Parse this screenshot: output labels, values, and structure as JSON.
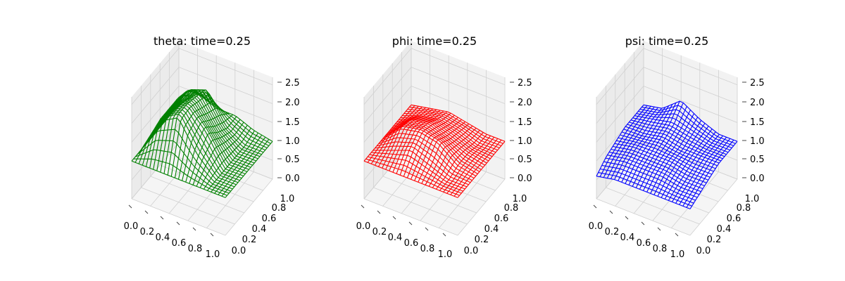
{
  "chart_data": [
    {
      "type": "surface",
      "title": "theta: time=0.25",
      "color": "#008000",
      "x_ticks": [
        "0.0",
        "0.2",
        "0.4",
        "0.6",
        "0.8",
        "1.0"
      ],
      "y_ticks": [
        "0.0",
        "0.2",
        "0.4",
        "0.6",
        "0.8",
        "1.0"
      ],
      "z_ticks": [
        "0.0",
        "0.5",
        "1.0",
        "1.5",
        "2.0",
        "2.5"
      ],
      "xlim": [
        0,
        1
      ],
      "ylim": [
        0,
        1
      ],
      "zlim": [
        0,
        2.7
      ],
      "x": [
        0.0,
        0.2,
        0.4,
        0.6,
        0.8,
        1.0
      ],
      "y": [
        0.0,
        0.2,
        0.4,
        0.6,
        0.8,
        1.0
      ],
      "z": [
        [
          1.0,
          1.0,
          1.0,
          1.0,
          1.0,
          1.0
        ],
        [
          1.0,
          2.0,
          2.3,
          1.5,
          1.0,
          1.0
        ],
        [
          1.0,
          2.0,
          2.3,
          1.8,
          1.0,
          1.0
        ],
        [
          1.0,
          2.0,
          2.2,
          1.5,
          1.0,
          1.0
        ],
        [
          1.0,
          1.9,
          2.1,
          1.3,
          1.0,
          1.0
        ],
        [
          1.0,
          1.5,
          1.3,
          1.3,
          1.1,
          1.0
        ]
      ]
    },
    {
      "type": "surface",
      "title": "phi: time=0.25",
      "color": "#ff0000",
      "x_ticks": [
        "0.0",
        "0.2",
        "0.4",
        "0.6",
        "0.8",
        "1.0"
      ],
      "y_ticks": [
        "0.0",
        "0.2",
        "0.4",
        "0.6",
        "0.8",
        "1.0"
      ],
      "z_ticks": [
        "0.0",
        "0.5",
        "1.0",
        "1.5",
        "2.0",
        "2.5"
      ],
      "xlim": [
        0,
        1
      ],
      "ylim": [
        0,
        1
      ],
      "zlim": [
        0,
        2.7
      ],
      "x": [
        0.0,
        0.2,
        0.4,
        0.6,
        0.8,
        1.0
      ],
      "y": [
        0.0,
        0.2,
        0.4,
        0.6,
        0.8,
        1.0
      ],
      "z": [
        [
          1.0,
          1.0,
          1.0,
          1.0,
          1.0,
          1.0
        ],
        [
          1.0,
          1.2,
          1.4,
          1.2,
          1.0,
          1.0
        ],
        [
          1.0,
          1.5,
          1.6,
          1.5,
          1.1,
          1.0
        ],
        [
          1.0,
          1.4,
          1.5,
          1.3,
          1.1,
          1.0
        ],
        [
          1.0,
          1.2,
          1.3,
          1.2,
          1.0,
          1.0
        ],
        [
          1.0,
          1.1,
          1.2,
          1.1,
          1.0,
          1.0
        ]
      ]
    },
    {
      "type": "surface",
      "title": "psi: time=0.25",
      "color": "#0000ff",
      "x_ticks": [
        "0.0",
        "0.2",
        "0.4",
        "0.6",
        "0.8",
        "1.0"
      ],
      "y_ticks": [
        "0.0",
        "0.2",
        "0.4",
        "0.6",
        "0.8",
        "1.0"
      ],
      "z_ticks": [
        "0.0",
        "0.5",
        "1.0",
        "1.5",
        "2.0",
        "2.5"
      ],
      "xlim": [
        0,
        1
      ],
      "ylim": [
        0,
        1
      ],
      "zlim": [
        0,
        2.7
      ],
      "x": [
        0.0,
        0.2,
        0.4,
        0.6,
        0.8,
        1.0
      ],
      "y": [
        0.0,
        0.2,
        0.4,
        0.6,
        0.8,
        1.0
      ],
      "z": [
        [
          0.6,
          0.7,
          0.7,
          0.7,
          0.7,
          0.7
        ],
        [
          0.8,
          0.9,
          0.9,
          0.9,
          0.8,
          0.8
        ],
        [
          0.9,
          1.0,
          1.0,
          1.0,
          0.9,
          0.9
        ],
        [
          1.0,
          1.0,
          1.1,
          1.0,
          1.0,
          1.0
        ],
        [
          1.0,
          1.1,
          1.2,
          1.1,
          1.0,
          1.0
        ],
        [
          1.0,
          1.1,
          1.5,
          1.2,
          1.0,
          1.0
        ]
      ]
    }
  ]
}
